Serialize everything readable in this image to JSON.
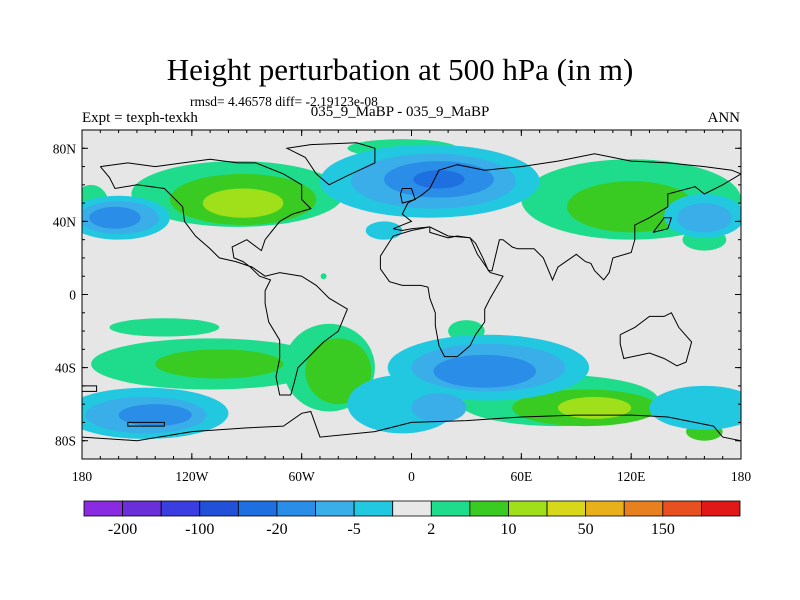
{
  "title": "Height perturbation at 500 hPa (in m)",
  "stats": "rmsd= 4.46578 diff= -2.19123e-08",
  "subtitle": "035_9_MaBP - 035_9_MaBP",
  "left_label": "Expt = texph-texkh",
  "right_label": "ANN",
  "map": {
    "lat_ticks": [
      {
        "value": 80,
        "label": "80N"
      },
      {
        "value": 40,
        "label": "40N"
      },
      {
        "value": 0,
        "label": "0"
      },
      {
        "value": -40,
        "label": "40S"
      },
      {
        "value": -80,
        "label": "80S"
      }
    ],
    "lon_ticks": [
      {
        "value": -180,
        "label": "180"
      },
      {
        "value": -120,
        "label": "120W"
      },
      {
        "value": -60,
        "label": "60W"
      },
      {
        "value": 0,
        "label": "0"
      },
      {
        "value": 60,
        "label": "60E"
      },
      {
        "value": 120,
        "label": "120E"
      },
      {
        "value": 180,
        "label": "180"
      }
    ],
    "lat_range": [
      -90,
      90
    ],
    "lon_range": [
      -180,
      180
    ],
    "background_color": "#e6e6e6"
  },
  "colorbar": {
    "colors": [
      "#8a2be2",
      "#6a2fd8",
      "#3a3ee0",
      "#2250d8",
      "#1e6fe0",
      "#2a8ee8",
      "#39aee8",
      "#22c8e0",
      "#e8e8e8",
      "#1fdc8c",
      "#3acb22",
      "#a0e01a",
      "#d8d81a",
      "#e8b01a",
      "#e88020",
      "#e85020",
      "#e01818"
    ],
    "labels": [
      {
        "after_box": 1,
        "text": "-200"
      },
      {
        "after_box": 3,
        "text": "-100"
      },
      {
        "after_box": 5,
        "text": "-20"
      },
      {
        "after_box": 7,
        "text": "-5"
      },
      {
        "after_box": 9,
        "text": "2"
      },
      {
        "after_box": 11,
        "text": "10"
      },
      {
        "after_box": 13,
        "text": "50"
      },
      {
        "after_box": 15,
        "text": "150"
      }
    ]
  },
  "fields": [
    {
      "color": "#1fdc8c",
      "blobs": [
        [
          -95,
          55,
          58,
          18
        ],
        [
          -175,
          48,
          10,
          12
        ],
        [
          120,
          52,
          60,
          22
        ],
        [
          -48,
          10,
          0,
          0
        ],
        [
          80,
          -58,
          55,
          14
        ],
        [
          -110,
          -38,
          65,
          14
        ],
        [
          -150,
          -65,
          30,
          8
        ],
        [
          -45,
          -40,
          25,
          24
        ],
        [
          160,
          30,
          12,
          6
        ],
        [
          30,
          -20,
          10,
          6
        ],
        [
          -135,
          -18,
          30,
          5
        ],
        [
          -5,
          80,
          30,
          5
        ]
      ]
    },
    {
      "color": "#3acb22",
      "blobs": [
        [
          -92,
          52,
          40,
          14
        ],
        [
          120,
          48,
          35,
          14
        ],
        [
          95,
          -62,
          40,
          10
        ],
        [
          -40,
          -42,
          18,
          18
        ],
        [
          -105,
          -38,
          35,
          8
        ],
        [
          160,
          -75,
          10,
          5
        ]
      ]
    },
    {
      "color": "#a0e01a",
      "blobs": [
        [
          -92,
          50,
          22,
          8
        ],
        [
          100,
          -62,
          20,
          6
        ]
      ]
    },
    {
      "color": "#22c8e0",
      "blobs": [
        [
          -160,
          42,
          28,
          12
        ],
        [
          10,
          62,
          60,
          20
        ],
        [
          42,
          -40,
          55,
          18
        ],
        [
          160,
          -62,
          30,
          12
        ],
        [
          -145,
          -65,
          45,
          14
        ],
        [
          -5,
          -60,
          30,
          16
        ],
        [
          160,
          43,
          22,
          12
        ],
        [
          -15,
          35,
          10,
          5
        ]
      ]
    },
    {
      "color": "#39aee8",
      "blobs": [
        [
          -160,
          42,
          22,
          9
        ],
        [
          12,
          62,
          45,
          15
        ],
        [
          42,
          -40,
          42,
          13
        ],
        [
          -145,
          -66,
          33,
          10
        ],
        [
          160,
          42,
          15,
          8
        ],
        [
          15,
          -62,
          15,
          8
        ]
      ]
    },
    {
      "color": "#2a8ee8",
      "blobs": [
        [
          -162,
          42,
          14,
          6
        ],
        [
          15,
          63,
          30,
          10
        ],
        [
          40,
          -42,
          28,
          9
        ],
        [
          -140,
          -66,
          20,
          6
        ]
      ]
    },
    {
      "color": "#1e6fe0",
      "blobs": [
        [
          15,
          63,
          14,
          5
        ]
      ]
    }
  ],
  "coastlines": [
    [
      [
        -170,
        70
      ],
      [
        -155,
        72
      ],
      [
        -140,
        70
      ],
      [
        -125,
        72
      ],
      [
        -110,
        74
      ],
      [
        -95,
        72
      ],
      [
        -85,
        72
      ],
      [
        -70,
        66
      ],
      [
        -60,
        60
      ],
      [
        -60,
        52
      ],
      [
        -55,
        47
      ],
      [
        -65,
        44
      ],
      [
        -72,
        40
      ],
      [
        -76,
        35
      ],
      [
        -80,
        30
      ],
      [
        -82,
        24
      ],
      [
        -90,
        30
      ],
      [
        -98,
        26
      ],
      [
        -97,
        20
      ],
      [
        -92,
        18
      ],
      [
        -88,
        15
      ],
      [
        -83,
        10
      ],
      [
        -77,
        8
      ],
      [
        -80,
        2
      ],
      [
        -80,
        -5
      ],
      [
        -78,
        -15
      ],
      [
        -72,
        -25
      ],
      [
        -72,
        -35
      ],
      [
        -74,
        -45
      ],
      [
        -72,
        -55
      ],
      [
        -66,
        -55
      ],
      [
        -64,
        -48
      ],
      [
        -62,
        -40
      ],
      [
        -57,
        -35
      ],
      [
        -48,
        -26
      ],
      [
        -40,
        -20
      ],
      [
        -35,
        -8
      ],
      [
        -45,
        -2
      ],
      [
        -52,
        5
      ],
      [
        -60,
        10
      ],
      [
        -72,
        12
      ],
      [
        -80,
        10
      ],
      [
        -87,
        15
      ],
      [
        -96,
        18
      ],
      [
        -105,
        20
      ],
      [
        -110,
        25
      ],
      [
        -118,
        32
      ],
      [
        -124,
        40
      ],
      [
        -125,
        48
      ],
      [
        -135,
        58
      ],
      [
        -150,
        60
      ],
      [
        -162,
        58
      ],
      [
        -165,
        64
      ],
      [
        -170,
        70
      ]
    ],
    [
      [
        -55,
        82
      ],
      [
        -30,
        83
      ],
      [
        -20,
        80
      ],
      [
        -20,
        72
      ],
      [
        -35,
        65
      ],
      [
        -45,
        60
      ],
      [
        -52,
        66
      ],
      [
        -58,
        75
      ],
      [
        -68,
        80
      ],
      [
        -55,
        82
      ]
    ],
    [
      [
        -10,
        36
      ],
      [
        0,
        40
      ],
      [
        -5,
        44
      ],
      [
        -2,
        50
      ],
      [
        5,
        54
      ],
      [
        10,
        58
      ],
      [
        15,
        68
      ],
      [
        25,
        71
      ],
      [
        40,
        68
      ],
      [
        60,
        70
      ],
      [
        80,
        73
      ],
      [
        100,
        77
      ],
      [
        120,
        73
      ],
      [
        140,
        72
      ],
      [
        160,
        70
      ],
      [
        175,
        68
      ],
      [
        180,
        66
      ],
      [
        170,
        60
      ],
      [
        160,
        55
      ],
      [
        155,
        59
      ],
      [
        140,
        55
      ],
      [
        140,
        48
      ],
      [
        130,
        42
      ],
      [
        122,
        38
      ],
      [
        122,
        30
      ],
      [
        120,
        23
      ],
      [
        110,
        20
      ],
      [
        108,
        12
      ],
      [
        105,
        8
      ],
      [
        100,
        13
      ],
      [
        98,
        17
      ],
      [
        95,
        18
      ],
      [
        90,
        22
      ],
      [
        80,
        15
      ],
      [
        77,
        8
      ],
      [
        72,
        20
      ],
      [
        67,
        25
      ],
      [
        58,
        25
      ],
      [
        55,
        26
      ],
      [
        50,
        30
      ],
      [
        48,
        30
      ],
      [
        44,
        13
      ],
      [
        42,
        13
      ],
      [
        39,
        20
      ],
      [
        35,
        28
      ],
      [
        32,
        31
      ],
      [
        25,
        32
      ],
      [
        20,
        31
      ],
      [
        10,
        34
      ],
      [
        10,
        37
      ],
      [
        0,
        36
      ],
      [
        -5,
        35
      ],
      [
        -10,
        36
      ]
    ],
    [
      [
        -17,
        21
      ],
      [
        -17,
        14
      ],
      [
        -12,
        7
      ],
      [
        -5,
        5
      ],
      [
        5,
        5
      ],
      [
        9,
        4
      ],
      [
        10,
        -2
      ],
      [
        13,
        -10
      ],
      [
        13,
        -17
      ],
      [
        15,
        -28
      ],
      [
        18,
        -34
      ],
      [
        25,
        -34
      ],
      [
        32,
        -28
      ],
      [
        35,
        -22
      ],
      [
        40,
        -15
      ],
      [
        40,
        -8
      ],
      [
        43,
        -2
      ],
      [
        50,
        10
      ],
      [
        43,
        12
      ],
      [
        36,
        22
      ],
      [
        32,
        31
      ],
      [
        20,
        32
      ],
      [
        10,
        37
      ],
      [
        0,
        35
      ],
      [
        -10,
        32
      ],
      [
        -17,
        21
      ]
    ],
    [
      [
        114,
        -22
      ],
      [
        122,
        -18
      ],
      [
        130,
        -12
      ],
      [
        138,
        -12
      ],
      [
        142,
        -10
      ],
      [
        146,
        -18
      ],
      [
        153,
        -26
      ],
      [
        150,
        -37
      ],
      [
        145,
        -39
      ],
      [
        138,
        -35
      ],
      [
        130,
        -32
      ],
      [
        116,
        -35
      ],
      [
        114,
        -27
      ],
      [
        114,
        -22
      ]
    ],
    [
      [
        -5,
        50
      ],
      [
        2,
        52
      ],
      [
        0,
        58
      ],
      [
        -5,
        58
      ],
      [
        -6,
        55
      ],
      [
        -5,
        50
      ]
    ],
    [
      [
        132,
        34
      ],
      [
        140,
        36
      ],
      [
        142,
        42
      ],
      [
        138,
        42
      ],
      [
        132,
        34
      ]
    ],
    [
      [
        -180,
        -78
      ],
      [
        -150,
        -80
      ],
      [
        -120,
        -75
      ],
      [
        -90,
        -73
      ],
      [
        -70,
        -72
      ],
      [
        -60,
        -65
      ],
      [
        -55,
        -64
      ],
      [
        -50,
        -78
      ],
      [
        -20,
        -75
      ],
      [
        0,
        -70
      ],
      [
        30,
        -69
      ],
      [
        60,
        -67
      ],
      [
        90,
        -66
      ],
      [
        120,
        -66
      ],
      [
        140,
        -67
      ],
      [
        165,
        -72
      ],
      [
        170,
        -78
      ],
      [
        180,
        -80
      ]
    ],
    [
      [
        -155,
        -70
      ],
      [
        -135,
        -70
      ],
      [
        -135,
        -72
      ],
      [
        -155,
        -72
      ],
      [
        -155,
        -70
      ]
    ],
    [
      [
        -180,
        -50
      ],
      [
        -172,
        -50
      ],
      [
        -172,
        -53
      ],
      [
        -180,
        -53
      ]
    ]
  ]
}
